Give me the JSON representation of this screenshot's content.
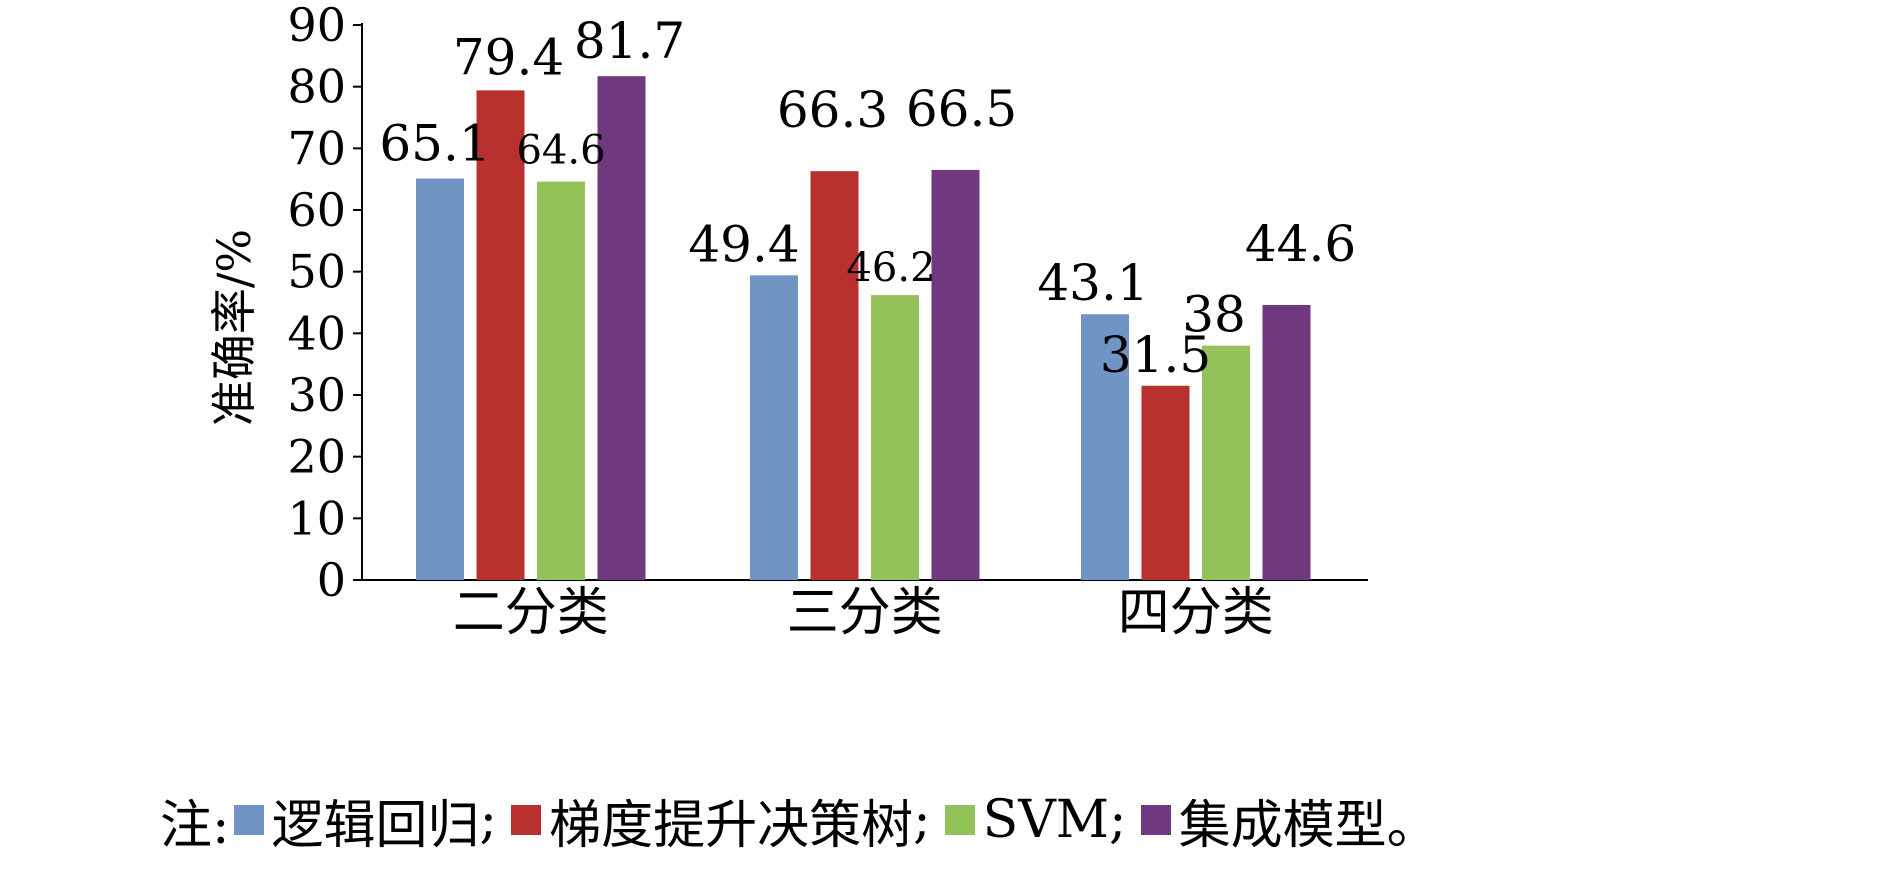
{
  "chart_data": {
    "type": "bar",
    "categories": [
      "二分类",
      "三分类",
      "四分类"
    ],
    "series": [
      {
        "name": "逻辑回归",
        "color": "#7094c4",
        "values": [
          65.1,
          49.4,
          43.1
        ]
      },
      {
        "name": "梯度提升决策树",
        "color": "#b8312f",
        "values": [
          79.4,
          66.3,
          31.5
        ]
      },
      {
        "name": "SVM",
        "color": "#93c25a",
        "values": [
          64.6,
          46.2,
          38
        ]
      },
      {
        "name": "集成模型",
        "color": "#70387f",
        "values": [
          81.7,
          66.5,
          44.6
        ]
      }
    ],
    "title": "",
    "xlabel": "",
    "ylabel": "准确率/%",
    "ylim": [
      0,
      90
    ],
    "yticks": [
      0,
      10,
      20,
      30,
      40,
      50,
      60,
      70,
      80,
      90
    ],
    "grid": false,
    "legend": {
      "placement": "bottom",
      "prefix": "注:",
      "separator": ";",
      "suffix": "。"
    }
  }
}
